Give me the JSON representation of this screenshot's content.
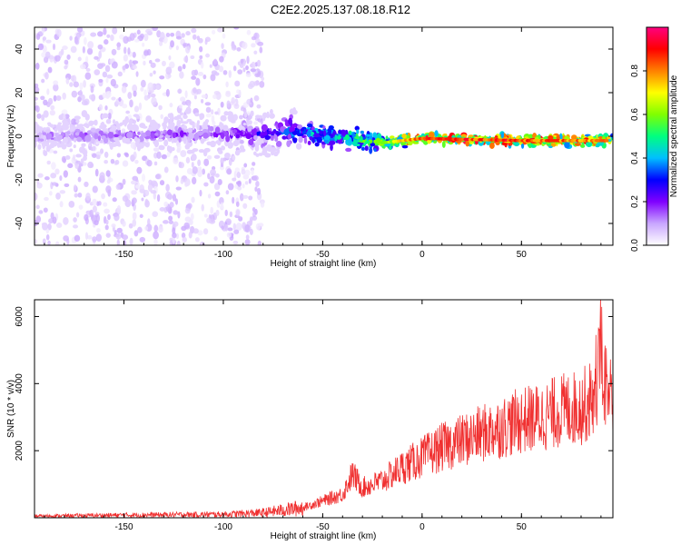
{
  "title": "C2E2.2025.137.08.18.R12",
  "chart_data": [
    {
      "type": "heatmap",
      "xlabel": "Height of straight line (km)",
      "ylabel": "Frequency (Hz)",
      "xlim": [
        -195,
        96
      ],
      "ylim": [
        -50,
        50
      ],
      "x_ticks": [
        -150,
        -100,
        -50,
        0,
        50
      ],
      "y_ticks": [
        -40,
        -20,
        0,
        20,
        40
      ],
      "colorbar": {
        "label": "Normalized spectral amplitude",
        "range": [
          0,
          1
        ],
        "ticks": [
          "0.0",
          "0.2",
          "0.4",
          "0.6",
          "0.8"
        ],
        "colors": [
          "#ffffff",
          "#c9a6ff",
          "#8000ff",
          "#0000ff",
          "#00bfff",
          "#00ff80",
          "#80ff00",
          "#ffff00",
          "#ff8000",
          "#ff0000",
          "#ff0080"
        ]
      },
      "ridge": [
        {
          "x": -195,
          "freq": 0,
          "amp": 0.15
        },
        {
          "x": -100,
          "freq": 1,
          "amp": 0.2
        },
        {
          "x": -60,
          "freq": 2,
          "amp": 0.4
        },
        {
          "x": -45,
          "freq": 0,
          "amp": 0.5
        },
        {
          "x": -20,
          "freq": -3,
          "amp": 0.6
        },
        {
          "x": 0,
          "freq": -1,
          "amp": 0.9
        },
        {
          "x": 50,
          "freq": -2,
          "amp": 0.9
        },
        {
          "x": 90,
          "freq": -2,
          "amp": 0.8
        }
      ]
    },
    {
      "type": "line",
      "xlabel": "Height of straight line (km)",
      "ylabel": "SNR (10 * v/v)",
      "xlim": [
        -195,
        96
      ],
      "ylim": [
        0,
        6500
      ],
      "x_ticks": [
        -150,
        -100,
        -50,
        0,
        50
      ],
      "y_ticks": [
        2000,
        4000,
        6000
      ],
      "color": "#f03030",
      "series": [
        {
          "x": [
            -195,
            -150,
            -100,
            -80,
            -60,
            -50,
            -40,
            -35,
            -30,
            -20,
            -10,
            0,
            10,
            20,
            30,
            40,
            50,
            60,
            70,
            80,
            85,
            88,
            90,
            93,
            96
          ],
          "values": [
            50,
            80,
            100,
            150,
            300,
            500,
            700,
            1300,
            900,
            1100,
            1500,
            1800,
            2100,
            2300,
            2500,
            2700,
            2900,
            3000,
            3200,
            3300,
            3500,
            4200,
            5000,
            3800,
            3600
          ]
        }
      ]
    }
  ]
}
